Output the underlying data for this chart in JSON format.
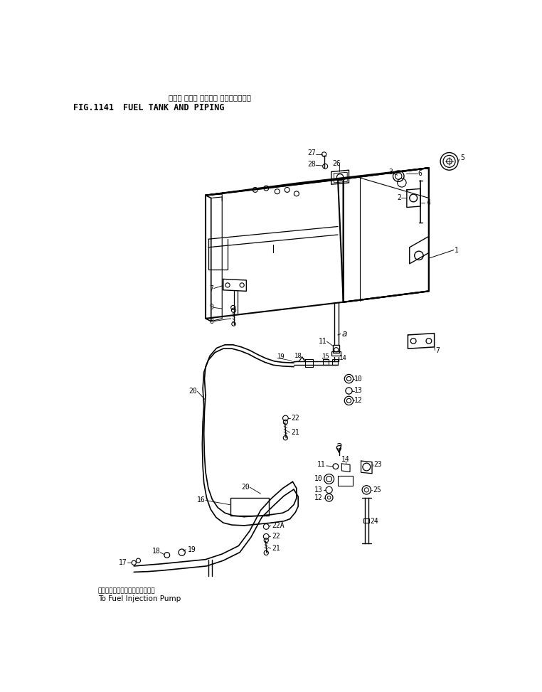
{
  "title_jp": "フェル タンク オヤビ・ バイピング・",
  "title_en": "FUEL TANK AND PIPING",
  "fig_label": "FIG.1141",
  "subtitle_bottom_jp": "フェルインジェクションポンプへ",
  "subtitle_bottom_en": "To Fuel Injection Pump",
  "bg_color": "#ffffff",
  "line_color": "#000000",
  "text_color": "#000000",
  "fig_width": 762,
  "fig_height": 973,
  "dpi": 100
}
